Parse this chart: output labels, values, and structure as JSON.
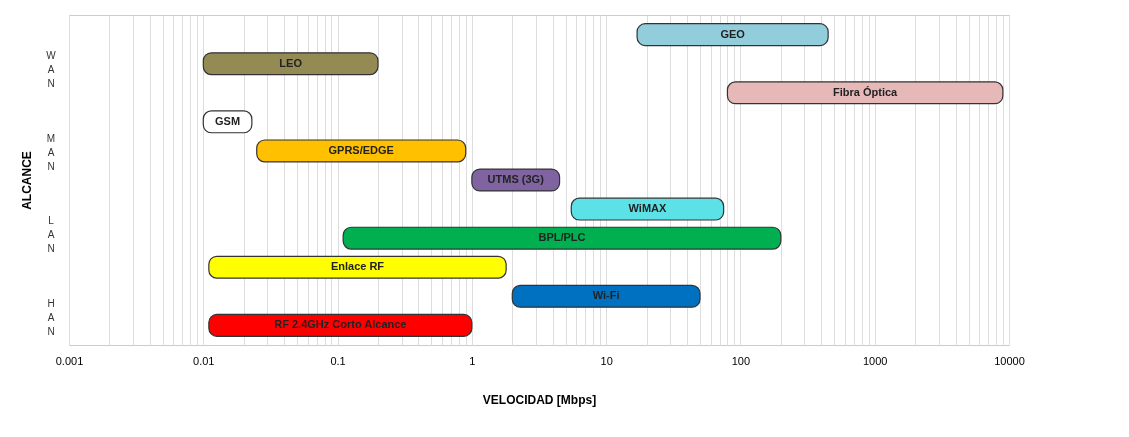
{
  "chart_data": {
    "type": "bar",
    "orientation": "horizontal",
    "xlabel": "VELOCIDAD [Mbps]",
    "ylabel": "ALCANCE",
    "categories": [
      "GEO",
      "LEO",
      "Fibra Óptica",
      "GSM",
      "GPRS/EDGE",
      "UTMS (3G)",
      "WiMAX",
      "BPL/PLC",
      "Enlace RF",
      "Wi-Fi",
      "RF 2.4GHz Corto Alcance"
    ],
    "base": [
      17,
      0.01,
      80,
      0.01,
      0.025,
      1,
      5.5,
      0.11,
      0.011,
      2,
      0.011
    ],
    "values": [
      433,
      0.19,
      8920,
      0.013,
      0.875,
      3.5,
      69.5,
      199.89,
      1.789,
      48,
      0.989
    ],
    "colors": [
      "#92cddc",
      "#948a54",
      "#e6b9b8",
      "#ffffff",
      "#ffc000",
      "#8064a2",
      "#5ce1e6",
      "#00b050",
      "#ffff00",
      "#0070c0",
      "#ff0000"
    ],
    "log": "x",
    "xlim": [
      0.001,
      10000
    ],
    "xticks": [
      0.001,
      0.01,
      0.1,
      1,
      10,
      100,
      1000,
      10000
    ],
    "grid": "x",
    "tick_labels": "x",
    "annotations": [
      "WAN",
      "MAN",
      "LAN",
      "HAN"
    ]
  }
}
